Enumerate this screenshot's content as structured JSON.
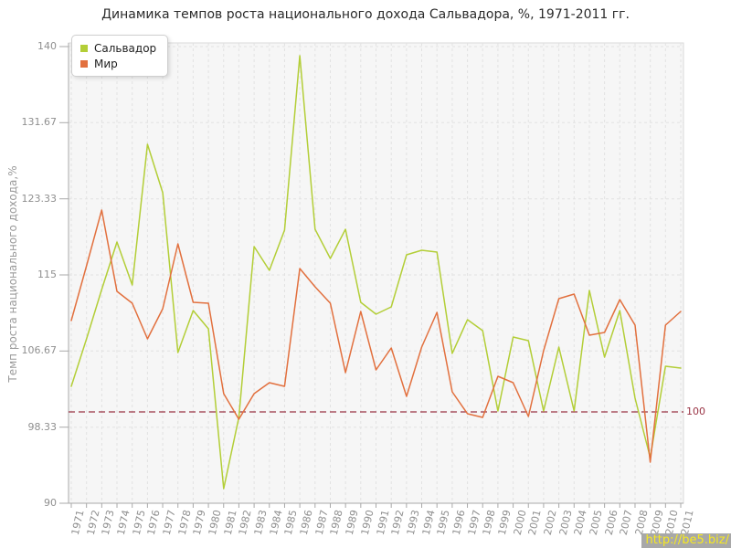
{
  "title": "Динамика темпов роста национального дохода Сальвадора, %, 1971-2011 гг.",
  "y_axis_title": "Темп роста национального дохода,%",
  "legend": {
    "items": [
      {
        "label": "Сальвадор",
        "color": "#b3ce37"
      },
      {
        "label": "Мир",
        "color": "#e2703e"
      }
    ]
  },
  "reference_line": {
    "value": 100,
    "label": "100",
    "color": "#993344"
  },
  "watermark": {
    "text": "http://be5.biz/",
    "text_color": "#f6e920",
    "bg_color": "#a8a8a8"
  },
  "colors": {
    "plot_background": "#f6f6f6",
    "grid": "#e2e2e2",
    "axis": "#a8a8a8",
    "tick_text": "#8f8f8f",
    "frame": "#d9d9d9"
  },
  "chart_data": {
    "type": "line",
    "title": "Динамика темпов роста национального дохода Сальвадора, %, 1971-2011 гг.",
    "xlabel": "",
    "ylabel": "Темп роста национального дохода,%",
    "ylim": [
      90,
      140
    ],
    "y_tick_labels": [
      "140",
      "131.67",
      "123.33",
      "115",
      "106.67",
      "98.33",
      "90"
    ],
    "grid": true,
    "legend_position": "top-left",
    "reference_value": 100,
    "categories": [
      1971,
      1972,
      1973,
      1974,
      1975,
      1976,
      1977,
      1978,
      1979,
      1980,
      1981,
      1982,
      1983,
      1984,
      1985,
      1986,
      1987,
      1988,
      1989,
      1990,
      1991,
      1992,
      1993,
      1994,
      1995,
      1996,
      1997,
      1998,
      1999,
      2000,
      2001,
      2002,
      2003,
      2004,
      2005,
      2006,
      2007,
      2008,
      2009,
      2010,
      2011
    ],
    "series": [
      {
        "name": "Сальвадор",
        "color": "#b3ce37",
        "values": [
          102.8,
          108.0,
          113.4,
          118.6,
          113.9,
          129.3,
          124.0,
          106.5,
          111.1,
          109.1,
          91.6,
          99.4,
          118.1,
          115.5,
          119.9,
          139.0,
          120.0,
          116.8,
          120.0,
          112.0,
          110.7,
          111.5,
          117.2,
          117.7,
          117.5,
          106.4,
          110.1,
          108.9,
          100.1,
          108.2,
          107.8,
          100.1,
          107.1,
          100.1,
          113.3,
          106.0,
          111.1,
          101.5,
          95.0,
          105.0,
          104.8
        ]
      },
      {
        "name": "Мир",
        "color": "#e2703e",
        "values": [
          110.0,
          116.0,
          122.1,
          113.2,
          111.9,
          108.0,
          111.3,
          118.4,
          112.0,
          111.9,
          102.0,
          99.2,
          102.0,
          103.2,
          102.8,
          115.7,
          113.7,
          111.9,
          104.3,
          111.0,
          104.6,
          107.0,
          101.7,
          107.1,
          110.9,
          102.2,
          99.8,
          99.4,
          103.9,
          103.2,
          99.5,
          106.7,
          112.4,
          112.9,
          108.4,
          108.7,
          112.3,
          109.5,
          94.5,
          109.5,
          111.0
        ]
      }
    ]
  }
}
